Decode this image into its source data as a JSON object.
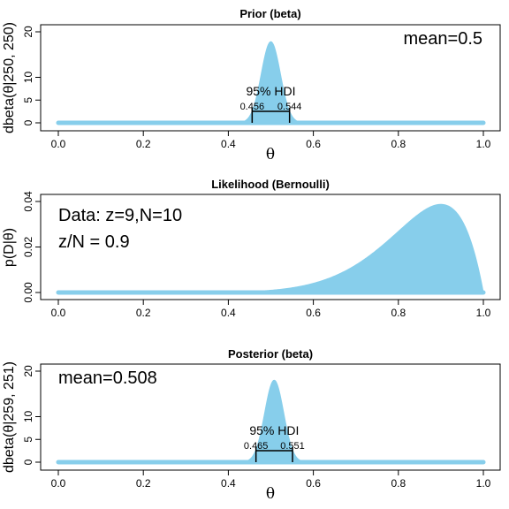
{
  "chart_data": [
    {
      "type": "area",
      "title": "Prior (beta)",
      "xlabel": "θ",
      "ylabel": "dbeta(θ|250, 250)",
      "dist": {
        "kind": "beta",
        "a": 250,
        "b": 250
      },
      "xlim": [
        0,
        1
      ],
      "ylim": [
        0,
        20
      ],
      "x_ticks": [
        "0.0",
        "0.2",
        "0.4",
        "0.6",
        "0.8",
        "1.0"
      ],
      "x_tick_values": [
        0,
        0.2,
        0.4,
        0.6,
        0.8,
        1.0
      ],
      "y_ticks": [
        "0",
        "5",
        "10",
        "20"
      ],
      "y_tick_values": [
        0,
        5,
        10,
        20
      ],
      "color": "#87ceeb",
      "annotation": {
        "text": "mean=0.5",
        "position": "top-right"
      },
      "hdi": {
        "label": "95% HDI",
        "low": 0.456,
        "high": 0.544,
        "low_text": "0.456",
        "high_text": "0.544"
      }
    },
    {
      "type": "area",
      "title": "Likelihood (Bernoulli)",
      "xlabel": "",
      "ylabel": "p(D|θ)",
      "dist": {
        "kind": "bernoulli",
        "z": 9,
        "N": 10
      },
      "xlim": [
        0,
        1
      ],
      "ylim": [
        0,
        0.04
      ],
      "x_ticks": [
        "0.0",
        "0.2",
        "0.4",
        "0.6",
        "0.8",
        "1.0"
      ],
      "x_tick_values": [
        0,
        0.2,
        0.4,
        0.6,
        0.8,
        1.0
      ],
      "y_ticks": [
        "0.00",
        "0.02",
        "0.04"
      ],
      "y_tick_values": [
        0,
        0.02,
        0.04
      ],
      "color": "#87ceeb",
      "annotations": [
        {
          "text": "Data: z=9,N=10",
          "position": "top-left"
        },
        {
          "text": "z/N = 0.9",
          "position": "upper-left"
        }
      ]
    },
    {
      "type": "area",
      "title": "Posterior (beta)",
      "xlabel": "θ",
      "ylabel": "dbeta(θ|259, 251)",
      "dist": {
        "kind": "beta",
        "a": 259,
        "b": 251
      },
      "xlim": [
        0,
        1
      ],
      "ylim": [
        0,
        20
      ],
      "x_ticks": [
        "0.0",
        "0.2",
        "0.4",
        "0.6",
        "0.8",
        "1.0"
      ],
      "x_tick_values": [
        0,
        0.2,
        0.4,
        0.6,
        0.8,
        1.0
      ],
      "y_ticks": [
        "0",
        "5",
        "10",
        "20"
      ],
      "y_tick_values": [
        0,
        5,
        10,
        20
      ],
      "color": "#87ceeb",
      "annotation": {
        "text": "mean=0.508",
        "position": "top-left"
      },
      "hdi": {
        "label": "95% HDI",
        "low": 0.465,
        "high": 0.551,
        "low_text": "0.465",
        "high_text": "0.551"
      }
    }
  ]
}
